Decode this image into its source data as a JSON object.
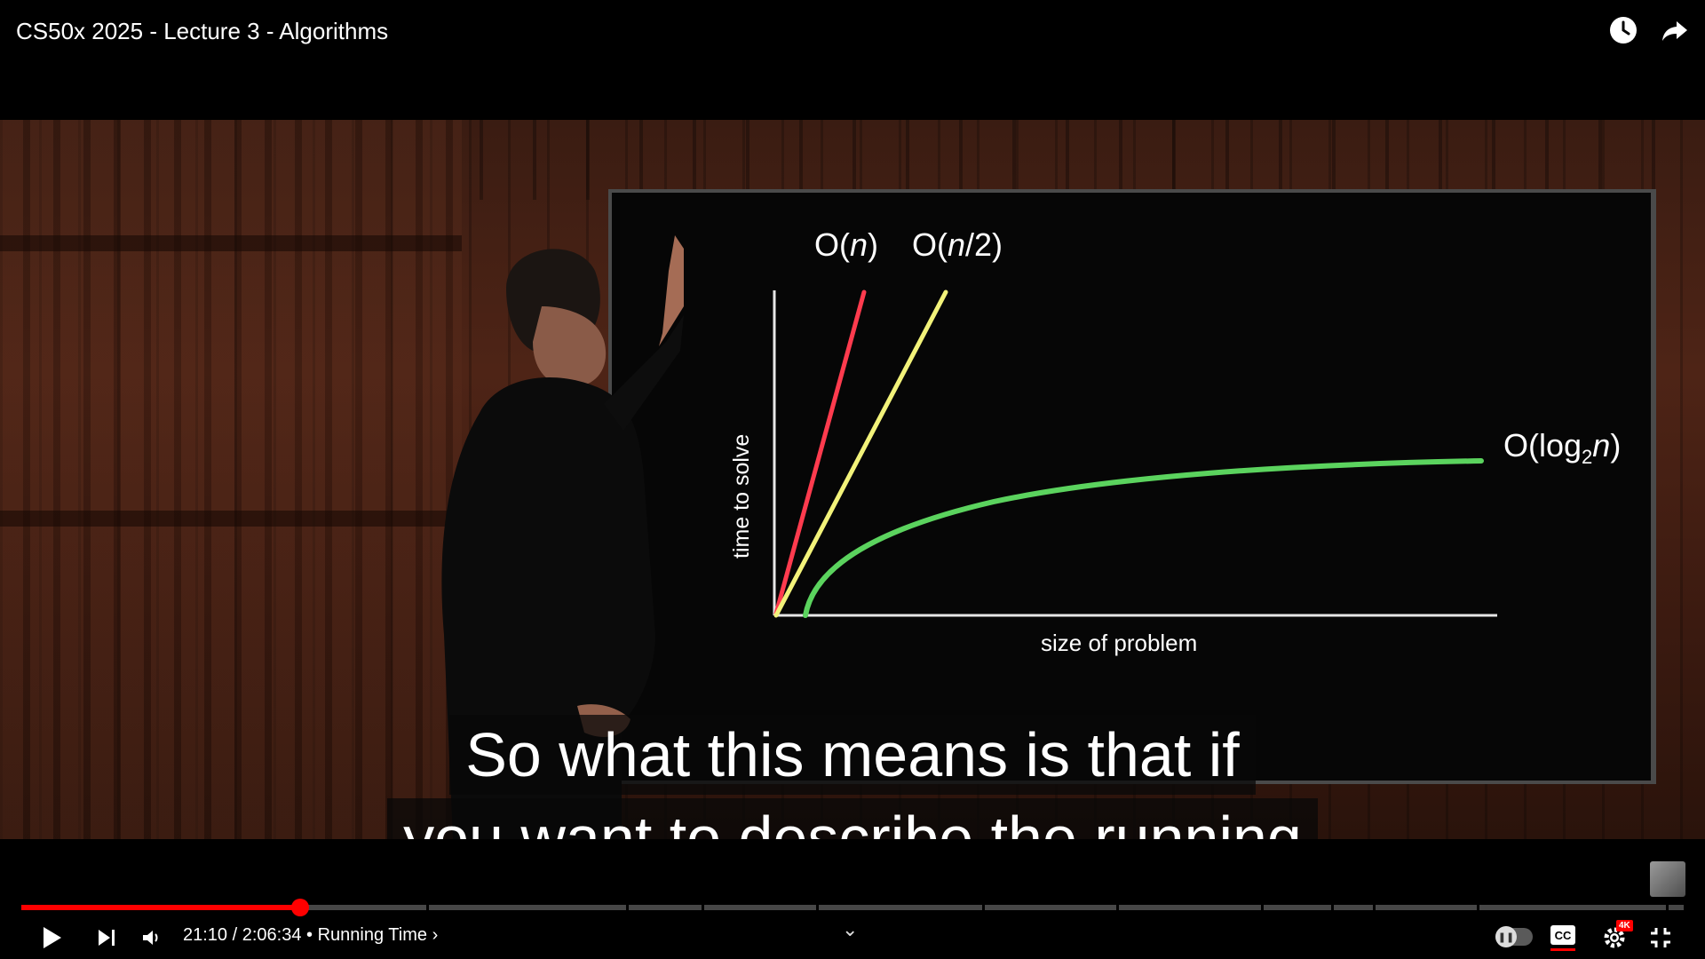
{
  "window": {
    "title": "CS50x 2025 - Lecture 3 - Algorithms"
  },
  "top_actions": {
    "icons": [
      "watch-later-icon",
      "share-icon"
    ]
  },
  "slide": {
    "labels": {
      "on": "O(n)",
      "on_prefix": "O(",
      "on_var": "n",
      "on_suffix": ")",
      "on2_prefix": "O(",
      "on2_var": "n",
      "on2_suffix": "/2)",
      "log_prefix": "O(log",
      "log_sub": "2",
      "log_var": "n",
      "log_suffix": ")"
    },
    "y_axis_label": "time to solve",
    "x_axis_label": "size of problem",
    "line_colors": {
      "on": "#ff3b4e",
      "on2": "#f2f27a",
      "log": "#5bd35e",
      "axes": "#e6e6e6"
    }
  },
  "captions": {
    "line1": "So what this means is that if",
    "line2": "you want to describe the running"
  },
  "player": {
    "current_time": "21:10",
    "duration": "2:06:34",
    "time_display": "21:10 / 2:06:34",
    "separator": "•",
    "chapter": "Running Time",
    "chapter_arrow": "›",
    "progress_fraction": 0.1672,
    "accent_color": "#ff0000",
    "buttons": {
      "play": "play-icon",
      "next": "next-icon",
      "volume": "volume-icon",
      "expand_chevron": "⌄",
      "autoplay": "autoplay-toggle",
      "cc": "CC",
      "settings_badge": "4K",
      "exit_fullscreen": "exit-fullscreen-icon"
    }
  }
}
